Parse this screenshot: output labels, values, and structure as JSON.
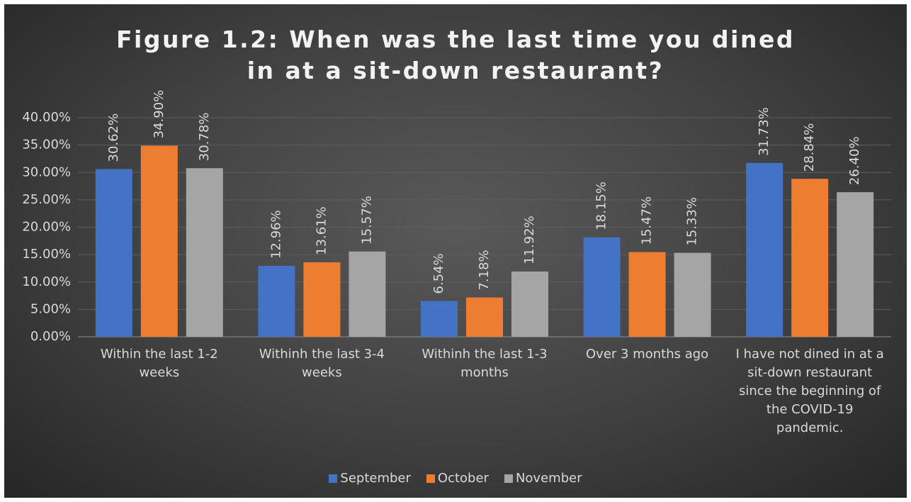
{
  "chart_data": {
    "type": "bar",
    "title": "Figure 1.2: When was the last time you dined in at a sit-down restaurant?",
    "categories": [
      "Within the last 1-2 weeks",
      "Withinh the last 3-4 weeks",
      "Withinh the last 1-3 months",
      "Over 3 months ago",
      "I have not dined in at a sit-down restaurant since the beginning of the COVID-19 pandemic."
    ],
    "series": [
      {
        "name": "September",
        "color": "#4472c4",
        "values": [
          30.62,
          12.96,
          6.54,
          18.15,
          31.73
        ],
        "value_labels": [
          "30.62%",
          "12.96%",
          "6.54%",
          "18.15%",
          "31.73%"
        ]
      },
      {
        "name": "October",
        "color": "#ed7d31",
        "values": [
          34.9,
          13.61,
          7.18,
          15.47,
          28.84
        ],
        "value_labels": [
          "34.90%",
          "13.61%",
          "7.18%",
          "15.47%",
          "28.84%"
        ]
      },
      {
        "name": "November",
        "color": "#a5a5a5",
        "values": [
          30.78,
          15.57,
          11.92,
          15.33,
          26.4
        ],
        "value_labels": [
          "30.78%",
          "15.57%",
          "11.92%",
          "15.33%",
          "26.40%"
        ]
      }
    ],
    "ylim": [
      0,
      40
    ],
    "yticks": [
      {
        "value": 0,
        "label": "0.00%"
      },
      {
        "value": 5,
        "label": "5.00%"
      },
      {
        "value": 10,
        "label": "10.00%"
      },
      {
        "value": 15,
        "label": "15.00%"
      },
      {
        "value": 20,
        "label": "20.00%"
      },
      {
        "value": 25,
        "label": "25.00%"
      },
      {
        "value": 30,
        "label": "30.00%"
      },
      {
        "value": 35,
        "label": "35.00%"
      },
      {
        "value": 40,
        "label": "40.00%"
      }
    ],
    "grid": true,
    "legend": "bottom"
  }
}
